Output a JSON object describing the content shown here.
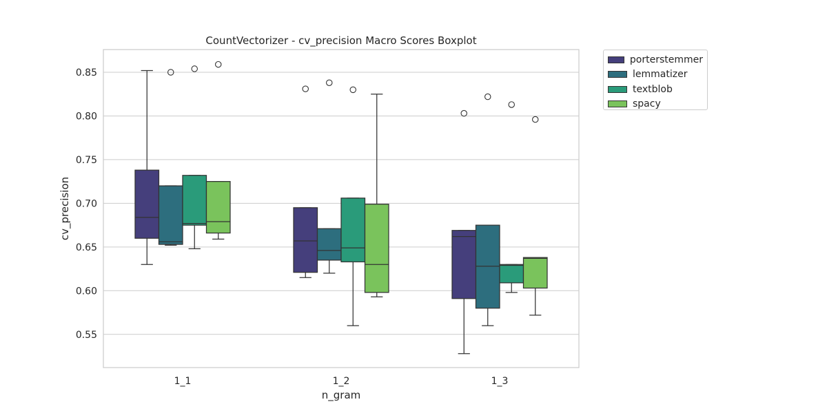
{
  "chart_data": {
    "type": "boxplot",
    "title": "CountVectorizer - cv_precision Macro Scores Boxplot",
    "xlabel": "n_gram",
    "ylabel": "cv_precision",
    "ylim": [
      0.512,
      0.876
    ],
    "yticks": [
      "0.55",
      "0.60",
      "0.65",
      "0.70",
      "0.75",
      "0.80",
      "0.85"
    ],
    "ytick_values": [
      0.55,
      0.6,
      0.65,
      0.7,
      0.75,
      0.8,
      0.85
    ],
    "categories": [
      "1_1",
      "1_2",
      "1_3"
    ],
    "grid": true,
    "legend_position": "outside top-right",
    "series": [
      {
        "name": "porterstemmer",
        "color": "#453f7c",
        "boxes": [
          {
            "whisker_low": 0.63,
            "q1": 0.66,
            "median": 0.684,
            "q3": 0.738,
            "whisker_high": 0.852,
            "outliers": []
          },
          {
            "whisker_low": 0.615,
            "q1": 0.621,
            "median": 0.657,
            "q3": 0.695,
            "whisker_high": 0.695,
            "outliers": [
              0.831
            ]
          },
          {
            "whisker_low": 0.528,
            "q1": 0.591,
            "median": 0.662,
            "q3": 0.669,
            "whisker_high": 0.669,
            "outliers": [
              0.803
            ]
          }
        ]
      },
      {
        "name": "lemmatizer",
        "color": "#2d6e7e",
        "boxes": [
          {
            "whisker_low": 0.652,
            "q1": 0.653,
            "median": 0.656,
            "q3": 0.72,
            "whisker_high": 0.72,
            "outliers": [
              0.85
            ]
          },
          {
            "whisker_low": 0.62,
            "q1": 0.635,
            "median": 0.646,
            "q3": 0.671,
            "whisker_high": 0.671,
            "outliers": [
              0.838
            ]
          },
          {
            "whisker_low": 0.56,
            "q1": 0.58,
            "median": 0.628,
            "q3": 0.675,
            "whisker_high": 0.675,
            "outliers": [
              0.822
            ]
          }
        ]
      },
      {
        "name": "textblob",
        "color": "#2a9b7a",
        "boxes": [
          {
            "whisker_low": 0.648,
            "q1": 0.675,
            "median": 0.677,
            "q3": 0.732,
            "whisker_high": 0.732,
            "outliers": [
              0.854
            ]
          },
          {
            "whisker_low": 0.56,
            "q1": 0.633,
            "median": 0.649,
            "q3": 0.706,
            "whisker_high": 0.706,
            "outliers": [
              0.83
            ]
          },
          {
            "whisker_low": 0.598,
            "q1": 0.609,
            "median": 0.629,
            "q3": 0.63,
            "whisker_high": 0.63,
            "outliers": [
              0.813
            ]
          }
        ]
      },
      {
        "name": "spacy",
        "color": "#7ac35c",
        "boxes": [
          {
            "whisker_low": 0.659,
            "q1": 0.666,
            "median": 0.679,
            "q3": 0.725,
            "whisker_high": 0.725,
            "outliers": [
              0.859
            ]
          },
          {
            "whisker_low": 0.593,
            "q1": 0.598,
            "median": 0.63,
            "q3": 0.699,
            "whisker_high": 0.825,
            "outliers": []
          },
          {
            "whisker_low": 0.572,
            "q1": 0.603,
            "median": 0.637,
            "q3": 0.638,
            "whisker_high": 0.638,
            "outliers": [
              0.796
            ]
          }
        ]
      }
    ]
  }
}
